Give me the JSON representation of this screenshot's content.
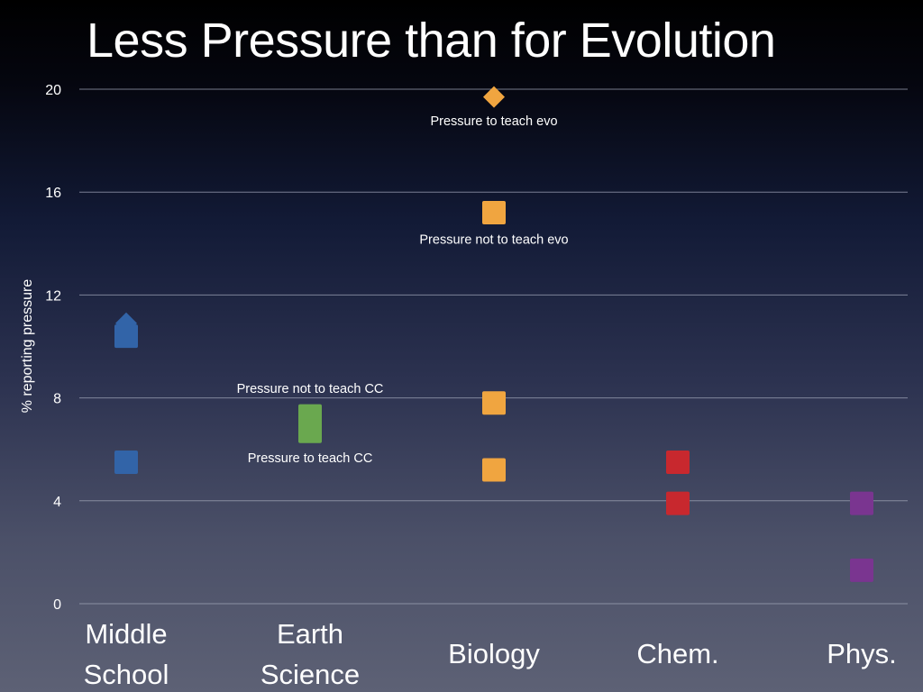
{
  "title": "Less Pressure than for Evolution",
  "chart_data": {
    "type": "scatter",
    "title": "Less Pressure than for Evolution",
    "xlabel": "",
    "ylabel": "% reporting pressure",
    "ylim": [
      0,
      20
    ],
    "yticks": [
      0,
      4,
      8,
      12,
      16,
      20
    ],
    "grid": true,
    "categories": [
      [
        "Middle",
        "School"
      ],
      [
        "Earth",
        "Science"
      ],
      [
        "Biology"
      ],
      [
        "Chem."
      ],
      [
        "Phys."
      ]
    ],
    "points": [
      {
        "category": 0,
        "y": 10.9,
        "color": "#3264a8",
        "marker": "diamond"
      },
      {
        "category": 0,
        "y": 10.4,
        "color": "#3264a8",
        "marker": "square"
      },
      {
        "category": 0,
        "y": 5.5,
        "color": "#3264a8",
        "marker": "square"
      },
      {
        "category": 1,
        "y": 7.3,
        "color": "#6aa84f",
        "marker": "square"
      },
      {
        "category": 1,
        "y": 6.7,
        "color": "#6aa84f",
        "marker": "square"
      },
      {
        "category": 2,
        "y": 19.7,
        "color": "#f0a540",
        "marker": "diamond"
      },
      {
        "category": 2,
        "y": 15.2,
        "color": "#f0a540",
        "marker": "square"
      },
      {
        "category": 2,
        "y": 7.8,
        "color": "#f0a540",
        "marker": "square"
      },
      {
        "category": 2,
        "y": 5.2,
        "color": "#f0a540",
        "marker": "square"
      },
      {
        "category": 3,
        "y": 5.5,
        "color": "#c8282e",
        "marker": "square"
      },
      {
        "category": 3,
        "y": 3.9,
        "color": "#c8282e",
        "marker": "square"
      },
      {
        "category": 4,
        "y": 3.9,
        "color": "#7a3590",
        "marker": "square"
      },
      {
        "category": 4,
        "y": 1.3,
        "color": "#7a3590",
        "marker": "square"
      }
    ],
    "annotations": [
      {
        "text": "Pressure to teach evo",
        "category": 2,
        "y": 18.6
      },
      {
        "text": "Pressure not to teach evo",
        "category": 2,
        "y": 14.0
      },
      {
        "text": "Pressure not to teach CC",
        "category": 1,
        "y": 8.2
      },
      {
        "text": "Pressure to teach CC",
        "category": 1,
        "y": 5.5
      }
    ]
  }
}
